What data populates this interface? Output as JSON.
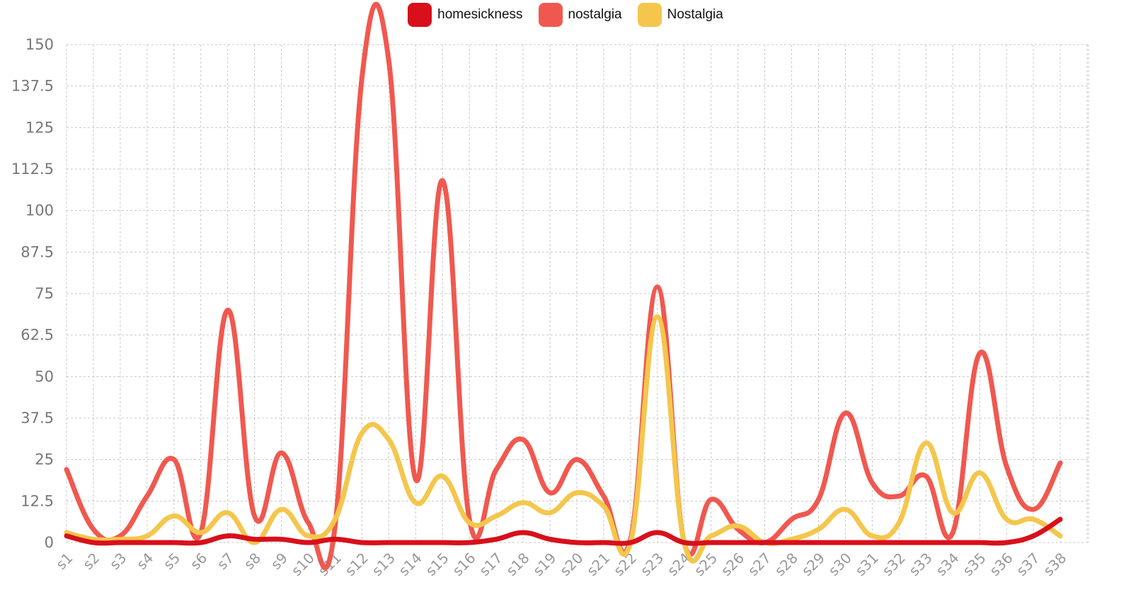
{
  "legend": [
    {
      "label": "homesickness",
      "color": "#D7101B"
    },
    {
      "label": "nostalgia",
      "color": "#F0584F"
    },
    {
      "label": "Nostalgia",
      "color": "#F4C64C"
    }
  ],
  "chart_data": {
    "type": "line",
    "categories": [
      "s1",
      "s2",
      "s3",
      "s4",
      "s5",
      "s6",
      "s7",
      "s8",
      "s9",
      "s10",
      "s11",
      "s12",
      "s13",
      "s14",
      "s15",
      "s16",
      "s17",
      "s18",
      "s19",
      "s20",
      "s21",
      "s22",
      "s23",
      "s24",
      "s25",
      "s26",
      "s27",
      "s28",
      "s29",
      "s30",
      "s31",
      "s32",
      "s33",
      "s34",
      "s35",
      "s36",
      "s37",
      "s38"
    ],
    "series": [
      {
        "name": "homesickness",
        "color": "#D7101B",
        "values": [
          2,
          0,
          0,
          0,
          0,
          0,
          2,
          1,
          1,
          0,
          1,
          0,
          0,
          0,
          0,
          0,
          1,
          3,
          1,
          0,
          0,
          0,
          3,
          0,
          0,
          0,
          0,
          0,
          0,
          0,
          0,
          0,
          0,
          0,
          0,
          0,
          2,
          7
        ]
      },
      {
        "name": "nostalgia",
        "color": "#F0584F",
        "values": [
          22,
          4,
          2,
          14,
          25,
          3,
          70,
          8,
          27,
          6,
          5,
          140,
          145,
          19,
          109,
          7,
          22,
          31,
          15,
          25,
          14,
          1,
          77,
          0,
          13,
          4,
          0,
          7,
          13,
          39,
          18,
          14,
          20,
          3,
          57,
          23,
          10,
          24
        ]
      },
      {
        "name": "Nostalgia",
        "color": "#F4C64C",
        "values": [
          3,
          1,
          1,
          2,
          8,
          3,
          9,
          0,
          10,
          2,
          7,
          33,
          31,
          12,
          20,
          6,
          8,
          12,
          9,
          15,
          11,
          0,
          68,
          0,
          2,
          5,
          0,
          1,
          4,
          10,
          2,
          6,
          30,
          9,
          21,
          7,
          7,
          2
        ]
      }
    ],
    "yticks": [
      "0",
      "12.5",
      "25",
      "37.5",
      "50",
      "62.5",
      "75",
      "87.5",
      "100",
      "112.5",
      "125",
      "137.5",
      "150"
    ],
    "ylim": [
      0,
      150
    ],
    "grid": true,
    "legend_position": "top-center"
  }
}
